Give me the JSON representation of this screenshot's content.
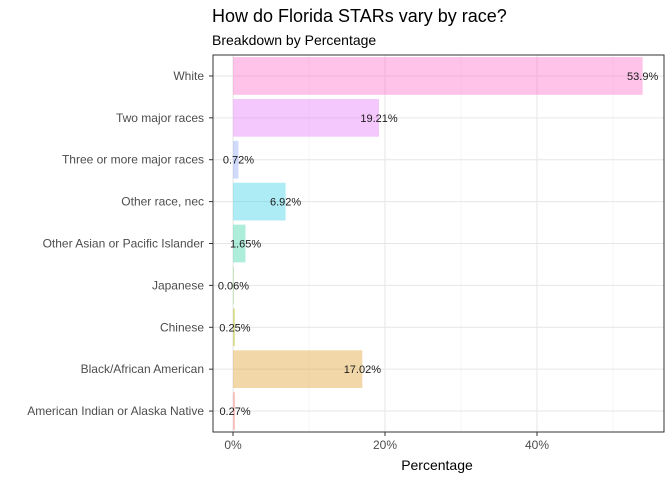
{
  "chart_data": {
    "type": "bar",
    "orientation": "horizontal",
    "title": "How do Florida STARs vary by race?",
    "subtitle": "Breakdown by Percentage",
    "xlabel": "Percentage",
    "ylabel": "",
    "xlim": [
      0,
      0.55
    ],
    "xticks": [
      {
        "value": 0,
        "label": "0%"
      },
      {
        "value": 0.2,
        "label": "20%"
      },
      {
        "value": 0.4,
        "label": "40%"
      }
    ],
    "grid": true,
    "legend": "none",
    "categories": [
      "White",
      "Two major races",
      "Three or more major races",
      "Other race, nec",
      "Other Asian or Pacific Islander",
      "Japanese",
      "Chinese",
      "Black/African American",
      "American Indian or Alaska Native"
    ],
    "values": [
      0.539,
      0.1921,
      0.0072,
      0.0692,
      0.0165,
      0.0006,
      0.0025,
      0.1702,
      0.0027
    ],
    "value_labels": [
      "53.9%",
      "19.21%",
      "0.72%",
      "6.92%",
      "1.65%",
      "0.06%",
      "0.25%",
      "17.02%",
      "0.27%"
    ],
    "colors": [
      "#ff6ec7",
      "#e77bfb",
      "#8fa9f7",
      "#3fd1e6",
      "#3fd4a6",
      "#6ccf56",
      "#b0b800",
      "#e0a331",
      "#f8766d"
    ]
  }
}
